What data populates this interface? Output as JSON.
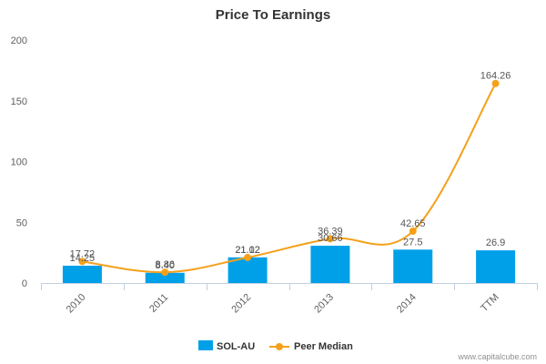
{
  "chart_data": {
    "type": "bar",
    "title": "Price To Earnings",
    "categories": [
      "2010",
      "2011",
      "2012",
      "2013",
      "2014",
      "TTM"
    ],
    "ylim": [
      0,
      200
    ],
    "yticks": [
      0,
      50,
      100,
      150,
      200
    ],
    "grid": false,
    "legend_position": "bottom-center",
    "series": [
      {
        "name": "SOL-AU",
        "kind": "bar",
        "color": "#00a0e9",
        "values": [
          14.25,
          8.4,
          21.12,
          30.66,
          27.5,
          26.9
        ],
        "labels": [
          "14.25",
          "8.40",
          "21.12",
          "30.66",
          "27.5",
          "26.9"
        ]
      },
      {
        "name": "Peer Median",
        "kind": "line",
        "color": "#f5a01a",
        "values": [
          17.72,
          8.86,
          21.02,
          36.39,
          42.65,
          164.26
        ],
        "labels": [
          "17.72",
          "8.86",
          "21.02",
          "36.39",
          "42.65",
          "164.26"
        ]
      }
    ]
  },
  "credit": "www.capitalcube.com"
}
